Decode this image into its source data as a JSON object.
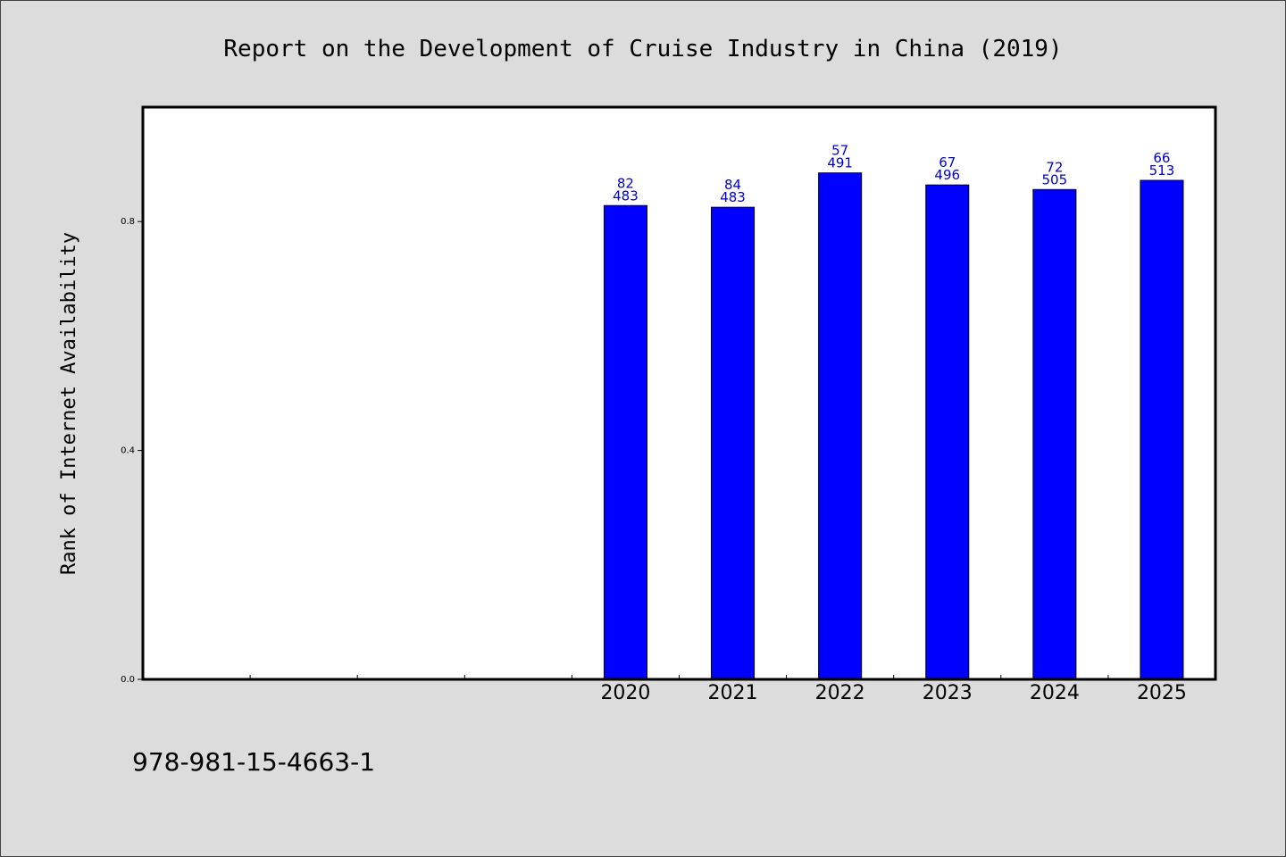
{
  "chart_data": {
    "type": "bar",
    "title": "Report on the Development of Cruise Industry in China (2019)",
    "xlabel": "",
    "ylabel": "Rank of Internet Availability",
    "categories": [
      "",
      "",
      "",
      "",
      "2020",
      "2021",
      "2022",
      "2023",
      "2024",
      "2025"
    ],
    "values": [
      null,
      null,
      null,
      null,
      0.828,
      0.825,
      0.885,
      0.864,
      0.856,
      0.872
    ],
    "data_labels": [
      null,
      null,
      null,
      null,
      [
        "82",
        "483"
      ],
      [
        "84",
        "483"
      ],
      [
        "57",
        "491"
      ],
      [
        "67",
        "496"
      ],
      [
        "72",
        "505"
      ],
      [
        "66",
        "513"
      ]
    ],
    "ylim": [
      0,
      1.0
    ],
    "yticks": [
      0.0,
      0.4,
      0.8
    ],
    "ytick_labels": [
      "0.0",
      "0.4",
      "0.8"
    ],
    "bar_color": "#0000ff",
    "label_color": "#0000cc",
    "grid": false,
    "legend": "none"
  },
  "footer": {
    "isbn": "978-981-15-4663-1"
  }
}
